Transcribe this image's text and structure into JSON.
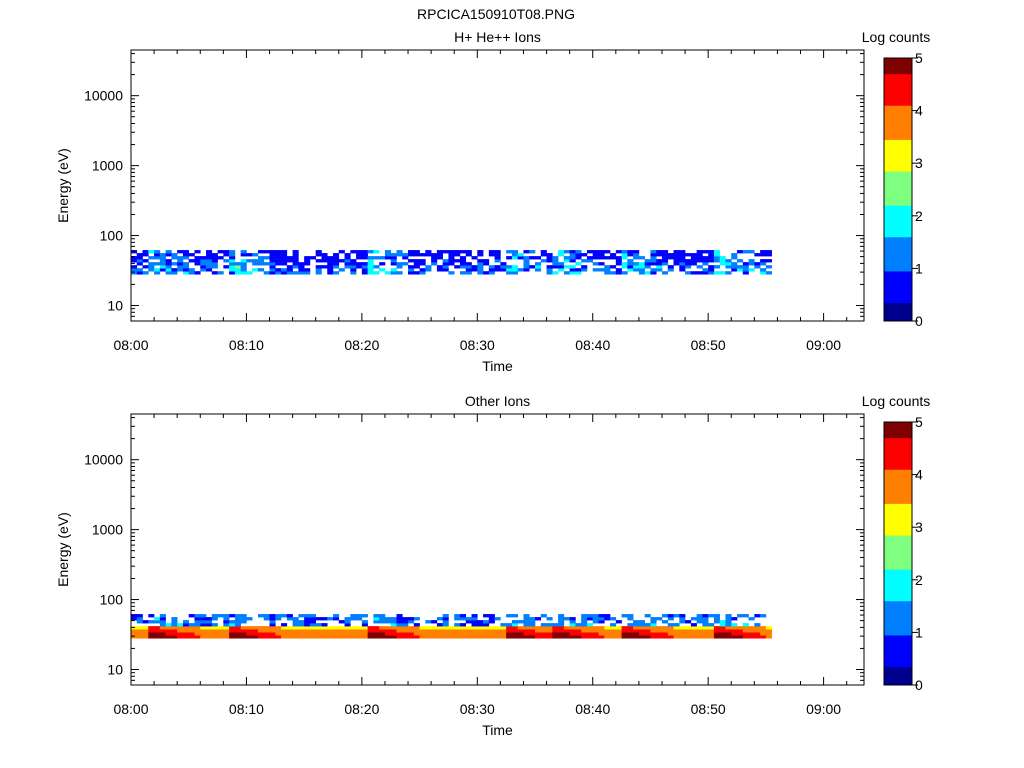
{
  "page": {
    "title": "RPCICA150910T08.PNG"
  },
  "colormap": [
    "#00008f",
    "#0000ff",
    "#007fff",
    "#00ffff",
    "#7fff7f",
    "#ffff00",
    "#ff7f00",
    "#ff0000",
    "#7f0000"
  ],
  "chart_data": [
    {
      "type": "heatmap",
      "title": "H+ He++ Ions",
      "xlabel": "Time",
      "ylabel": "Energy (eV)",
      "x_tick_labels": [
        "08:00",
        "08:10",
        "08:20",
        "08:30",
        "08:40",
        "08:50",
        "09:00"
      ],
      "x_range_minutes": [
        0,
        63.5
      ],
      "y_scale": "log",
      "y_tick_labels": [
        "10",
        "100",
        "1000",
        "10000"
      ],
      "y_tick_values": [
        10,
        100,
        1000,
        10000
      ],
      "y_range": [
        6,
        45000
      ],
      "colorbar": {
        "label": "Log counts",
        "min": 0,
        "max": 5,
        "ticks": [
          "0",
          "1",
          "2",
          "3",
          "4",
          "5"
        ]
      },
      "data_extent": {
        "x_start_minutes": 0,
        "x_end_minutes": 55.5,
        "energy_min_eV": 28,
        "energy_max_eV": 62
      },
      "typical_log_counts_range": [
        0,
        3
      ],
      "enhancement_times_minutes": [
        2,
        9,
        21,
        33,
        37,
        43,
        51
      ]
    },
    {
      "type": "heatmap",
      "title": "Other Ions",
      "xlabel": "Time",
      "ylabel": "Energy (eV)",
      "x_tick_labels": [
        "08:00",
        "08:10",
        "08:20",
        "08:30",
        "08:40",
        "08:50",
        "09:00"
      ],
      "x_range_minutes": [
        0,
        63.5
      ],
      "y_scale": "log",
      "y_tick_labels": [
        "10",
        "100",
        "1000",
        "10000"
      ],
      "y_tick_values": [
        10,
        100,
        1000,
        10000
      ],
      "y_range": [
        6,
        45000
      ],
      "colorbar": {
        "label": "Log counts",
        "min": 0,
        "max": 5,
        "ticks": [
          "0",
          "1",
          "2",
          "3",
          "4",
          "5"
        ]
      },
      "data_extent": {
        "x_start_minutes": 0,
        "x_end_minutes": 55.5,
        "energy_min_eV": 28,
        "energy_max_eV": 62
      },
      "typical_log_counts_range": [
        0,
        4.5
      ],
      "enhancement_times_minutes": [
        2,
        9,
        21,
        33,
        37,
        43,
        51
      ]
    }
  ]
}
